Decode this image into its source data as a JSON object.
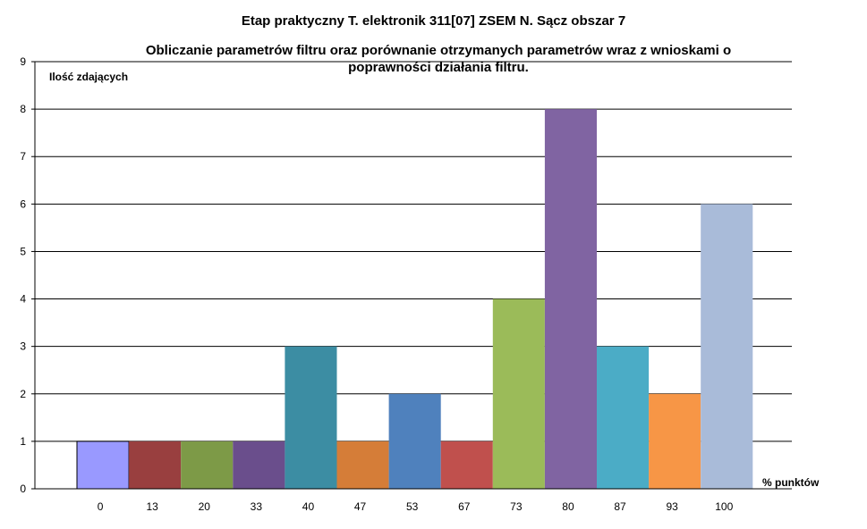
{
  "chart_data": {
    "type": "bar",
    "title": "Etap praktyczny T. elektronik 311[07] ZSEM N. Sącz obszar 7",
    "subtitle_lines": [
      "Obliczanie parametrów filtru  oraz porównanie otrzymanych parametrów  wraz z wnioskami o",
      "poprawności działania filtru."
    ],
    "xlabel": "% punktów",
    "ylabel": "Ilość zdających",
    "categories": [
      "0",
      "13",
      "20",
      "33",
      "40",
      "47",
      "53",
      "67",
      "73",
      "80",
      "87",
      "93",
      "100"
    ],
    "values": [
      1,
      1,
      1,
      1,
      3,
      1,
      2,
      1,
      4,
      8,
      3,
      2,
      6
    ],
    "colors": [
      "#9999FF",
      "#993F3F",
      "#7D9A47",
      "#6A4E8C",
      "#3C8DA3",
      "#D57D38",
      "#4F81BD",
      "#C0504D",
      "#9BBB59",
      "#8064A2",
      "#4BACC6",
      "#F79646",
      "#A9BBD9"
    ],
    "ylim": [
      0,
      9
    ],
    "yticks": [
      0,
      1,
      2,
      3,
      4,
      5,
      6,
      7,
      8,
      9
    ],
    "grid": true,
    "legend": "none"
  }
}
